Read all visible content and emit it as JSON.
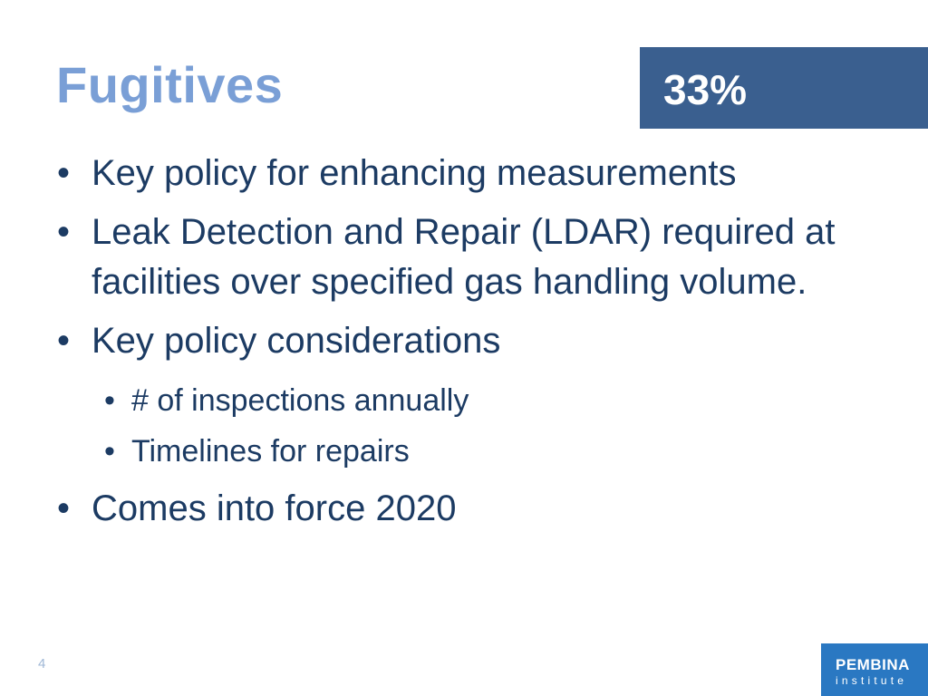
{
  "slide": {
    "title": "Fugitives",
    "stat": "33%",
    "bullets": [
      "Key policy for enhancing measurements",
      "Leak Detection and Repair (LDAR) required at facilities over specified gas handling volume.",
      "Key policy considerations",
      "Comes into force 2020"
    ],
    "sub_bullets": [
      "# of inspections annually",
      "Timelines for repairs"
    ],
    "page_number": "4",
    "logo": {
      "name": "PEMBINA",
      "sub": "institute"
    }
  },
  "colors": {
    "title": "#7a9fd6",
    "stat_box": "#3a5f8f",
    "body_text": "#1c3b63",
    "logo_bg": "#2a78c2"
  }
}
